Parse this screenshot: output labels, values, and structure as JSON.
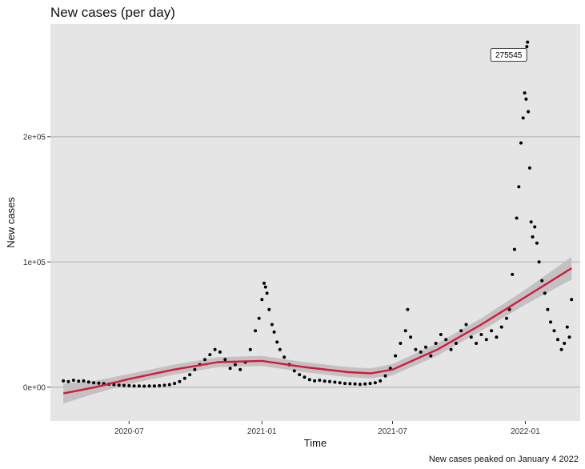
{
  "chart_data": {
    "type": "scatter",
    "title": "New cases (per day)",
    "xlabel": "Time",
    "ylabel": "New cases",
    "caption": "New cases peaked on January 4 2022",
    "annotation": {
      "label": "275545",
      "x": "2022-01-04",
      "y": 275545
    },
    "xlim": [
      "2020-03-14",
      "2022-03-18"
    ],
    "ylim": [
      -27000,
      290000
    ],
    "x_ticks": [
      {
        "label": "2020-07",
        "date": "2020-07-01"
      },
      {
        "label": "2021-01",
        "date": "2021-01-01"
      },
      {
        "label": "2021-07",
        "date": "2021-07-01"
      },
      {
        "label": "2022-01",
        "date": "2022-01-01"
      }
    ],
    "y_ticks": [
      {
        "label": "0e+00",
        "value": 0
      },
      {
        "label": "1e+05",
        "value": 100000
      },
      {
        "label": "2e+05",
        "value": 200000
      }
    ],
    "grid": true,
    "series": [
      {
        "type": "points",
        "color": "#000000",
        "points": [
          [
            "2020-04-01",
            5000
          ],
          [
            "2020-04-08",
            4500
          ],
          [
            "2020-04-15",
            5500
          ],
          [
            "2020-04-22",
            4800
          ],
          [
            "2020-04-29",
            5000
          ],
          [
            "2020-05-06",
            4200
          ],
          [
            "2020-05-13",
            3500
          ],
          [
            "2020-05-20",
            3200
          ],
          [
            "2020-05-27",
            2800
          ],
          [
            "2020-06-03",
            2400
          ],
          [
            "2020-06-10",
            2000
          ],
          [
            "2020-06-17",
            1600
          ],
          [
            "2020-06-24",
            1400
          ],
          [
            "2020-07-01",
            1200
          ],
          [
            "2020-07-08",
            1000
          ],
          [
            "2020-07-15",
            900
          ],
          [
            "2020-07-22",
            800
          ],
          [
            "2020-07-29",
            900
          ],
          [
            "2020-08-05",
            1000
          ],
          [
            "2020-08-12",
            1200
          ],
          [
            "2020-08-19",
            1500
          ],
          [
            "2020-08-26",
            2000
          ],
          [
            "2020-09-02",
            3000
          ],
          [
            "2020-09-09",
            4500
          ],
          [
            "2020-09-16",
            7000
          ],
          [
            "2020-09-23",
            10000
          ],
          [
            "2020-09-30",
            14000
          ],
          [
            "2020-10-07",
            18000
          ],
          [
            "2020-10-14",
            22000
          ],
          [
            "2020-10-21",
            26000
          ],
          [
            "2020-10-28",
            30000
          ],
          [
            "2020-11-04",
            28000
          ],
          [
            "2020-11-11",
            22000
          ],
          [
            "2020-11-18",
            15000
          ],
          [
            "2020-11-25",
            18000
          ],
          [
            "2020-12-02",
            14000
          ],
          [
            "2020-12-09",
            20000
          ],
          [
            "2020-12-16",
            30000
          ],
          [
            "2020-12-23",
            45000
          ],
          [
            "2020-12-28",
            55000
          ],
          [
            "2021-01-01",
            70000
          ],
          [
            "2021-01-04",
            83000
          ],
          [
            "2021-01-06",
            80000
          ],
          [
            "2021-01-08",
            75000
          ],
          [
            "2021-01-11",
            62000
          ],
          [
            "2021-01-15",
            50000
          ],
          [
            "2021-01-18",
            44000
          ],
          [
            "2021-01-22",
            36000
          ],
          [
            "2021-01-26",
            30000
          ],
          [
            "2021-02-01",
            24000
          ],
          [
            "2021-02-08",
            18000
          ],
          [
            "2021-02-15",
            13000
          ],
          [
            "2021-02-22",
            10000
          ],
          [
            "2021-03-01",
            8000
          ],
          [
            "2021-03-08",
            6000
          ],
          [
            "2021-03-15",
            5000
          ],
          [
            "2021-03-22",
            5500
          ],
          [
            "2021-03-29",
            4800
          ],
          [
            "2021-04-05",
            4500
          ],
          [
            "2021-04-12",
            4000
          ],
          [
            "2021-04-19",
            3500
          ],
          [
            "2021-04-26",
            3000
          ],
          [
            "2021-05-03",
            2800
          ],
          [
            "2021-05-10",
            2500
          ],
          [
            "2021-05-17",
            2200
          ],
          [
            "2021-05-24",
            2500
          ],
          [
            "2021-05-31",
            3000
          ],
          [
            "2021-06-07",
            3500
          ],
          [
            "2021-06-14",
            5000
          ],
          [
            "2021-06-21",
            9000
          ],
          [
            "2021-06-28",
            15000
          ],
          [
            "2021-07-05",
            25000
          ],
          [
            "2021-07-12",
            35000
          ],
          [
            "2021-07-19",
            45000
          ],
          [
            "2021-07-22",
            62000
          ],
          [
            "2021-07-26",
            40000
          ],
          [
            "2021-08-02",
            30000
          ],
          [
            "2021-08-09",
            28000
          ],
          [
            "2021-08-16",
            32000
          ],
          [
            "2021-08-23",
            25000
          ],
          [
            "2021-08-30",
            35000
          ],
          [
            "2021-09-06",
            42000
          ],
          [
            "2021-09-13",
            38000
          ],
          [
            "2021-09-20",
            30000
          ],
          [
            "2021-09-27",
            35000
          ],
          [
            "2021-10-04",
            45000
          ],
          [
            "2021-10-11",
            50000
          ],
          [
            "2021-10-18",
            40000
          ],
          [
            "2021-10-25",
            35000
          ],
          [
            "2021-11-01",
            42000
          ],
          [
            "2021-11-08",
            38000
          ],
          [
            "2021-11-15",
            45000
          ],
          [
            "2021-11-22",
            40000
          ],
          [
            "2021-11-29",
            48000
          ],
          [
            "2021-12-06",
            55000
          ],
          [
            "2021-12-10",
            62000
          ],
          [
            "2021-12-14",
            90000
          ],
          [
            "2021-12-17",
            110000
          ],
          [
            "2021-12-20",
            135000
          ],
          [
            "2021-12-23",
            160000
          ],
          [
            "2021-12-26",
            195000
          ],
          [
            "2021-12-29",
            215000
          ],
          [
            "2021-12-31",
            235000
          ],
          [
            "2022-01-02",
            230000
          ],
          [
            "2022-01-03",
            272000
          ],
          [
            "2022-01-04",
            275545
          ],
          [
            "2022-01-05",
            220000
          ],
          [
            "2022-01-07",
            175000
          ],
          [
            "2022-01-09",
            132000
          ],
          [
            "2022-01-11",
            120000
          ],
          [
            "2022-01-14",
            128000
          ],
          [
            "2022-01-17",
            115000
          ],
          [
            "2022-01-20",
            100000
          ],
          [
            "2022-01-24",
            85000
          ],
          [
            "2022-01-28",
            75000
          ],
          [
            "2022-02-01",
            62000
          ],
          [
            "2022-02-05",
            52000
          ],
          [
            "2022-02-10",
            45000
          ],
          [
            "2022-02-15",
            38000
          ],
          [
            "2022-02-20",
            30000
          ],
          [
            "2022-02-24",
            35000
          ],
          [
            "2022-02-28",
            48000
          ],
          [
            "2022-03-03",
            40000
          ],
          [
            "2022-03-06",
            70000
          ]
        ]
      },
      {
        "type": "smooth",
        "color": "#d6173a",
        "band_color": "#bcbcbc",
        "points": [
          [
            "2020-04-01",
            -5000
          ],
          [
            "2020-05-15",
            0
          ],
          [
            "2020-07-01",
            6500
          ],
          [
            "2020-09-01",
            14000
          ],
          [
            "2020-11-01",
            20000
          ],
          [
            "2021-01-01",
            21000
          ],
          [
            "2021-03-01",
            16000
          ],
          [
            "2021-05-01",
            12000
          ],
          [
            "2021-06-01",
            11000
          ],
          [
            "2021-07-01",
            14000
          ],
          [
            "2021-09-01",
            30000
          ],
          [
            "2021-11-01",
            50000
          ],
          [
            "2022-01-01",
            72000
          ],
          [
            "2022-03-06",
            95000
          ]
        ],
        "band_width": [
          8000,
          5000,
          4000,
          4000,
          4000,
          4000,
          4000,
          4000,
          4000,
          4500,
          5000,
          5000,
          6000,
          9000
        ]
      }
    ]
  }
}
